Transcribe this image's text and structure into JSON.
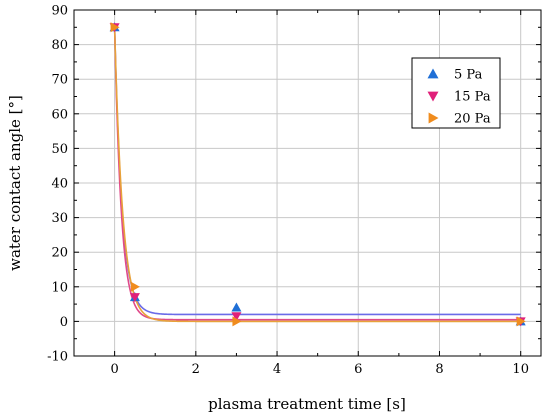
{
  "chart_data": {
    "type": "scatter",
    "xlabel": "plasma treatment time [s]",
    "ylabel": "water contact angle [°]",
    "xlim": [
      -1,
      10.5
    ],
    "ylim": [
      -10,
      90
    ],
    "xticks": [
      0,
      2,
      4,
      6,
      8,
      10
    ],
    "yticks": [
      -10,
      0,
      10,
      20,
      30,
      40,
      50,
      60,
      70,
      80,
      90
    ],
    "grid": true,
    "legend_position": "top-right",
    "series": [
      {
        "name": "5 Pa",
        "marker": "triangle-up",
        "color": "#1f6fd6",
        "fit_color": "#6b6be8",
        "points": [
          [
            0,
            85
          ],
          [
            0.5,
            7
          ],
          [
            3,
            4
          ],
          [
            10,
            0
          ]
        ],
        "fit": {
          "a": 83.0,
          "k": 5.5,
          "c": 2.0
        }
      },
      {
        "name": "15 Pa",
        "marker": "triangle-down",
        "color": "#e0207a",
        "fit_color": "#e04a8a",
        "points": [
          [
            0,
            85
          ],
          [
            0.5,
            7
          ],
          [
            3,
            1.5
          ],
          [
            10,
            0
          ]
        ],
        "fit": {
          "a": 84.5,
          "k": 6.0,
          "c": 0.5
        }
      },
      {
        "name": "20 Pa",
        "marker": "triangle-right",
        "color": "#f08c1e",
        "fit_color": "#e8a23a",
        "points": [
          [
            0,
            85
          ],
          [
            0.5,
            10
          ],
          [
            3,
            0
          ],
          [
            10,
            0
          ]
        ],
        "fit": {
          "a": 85.0,
          "k": 5.0,
          "c": 0.0
        }
      }
    ]
  }
}
